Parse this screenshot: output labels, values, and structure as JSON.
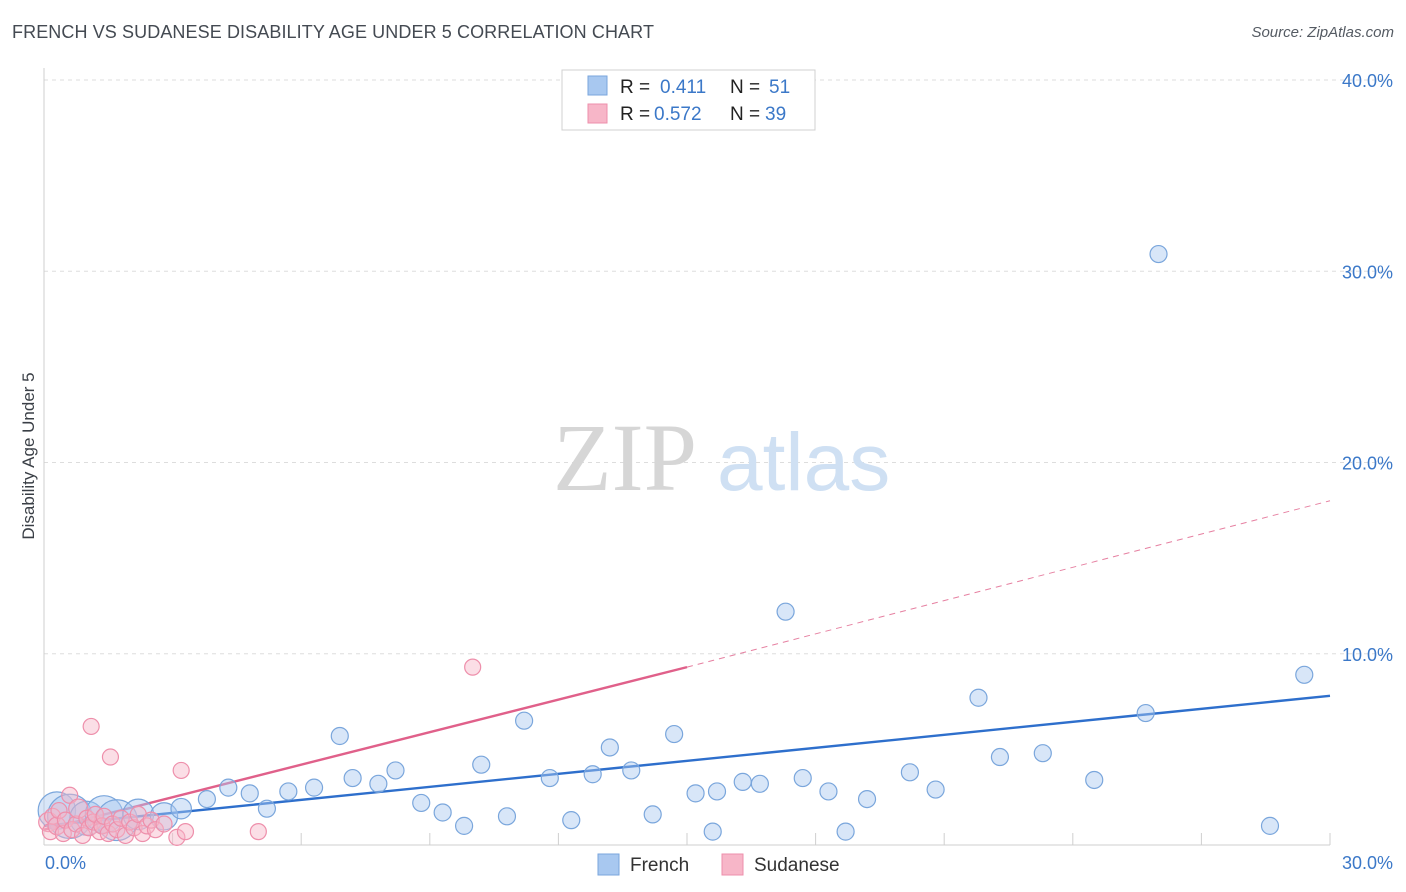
{
  "title": "FRENCH VS SUDANESE DISABILITY AGE UNDER 5 CORRELATION CHART",
  "source": "Source: ZipAtlas.com",
  "watermark": {
    "zip": "ZIP",
    "atlas": "atlas"
  },
  "colors": {
    "french_fill": "#a8c8f0",
    "french_stroke": "#7aa6dc",
    "french_line": "#2e6fcc",
    "sudanese_fill": "#f7b6c8",
    "sudanese_stroke": "#ee8fab",
    "sudanese_line": "#e0608a",
    "value_blue": "#3b78c8",
    "grid": "#dddddd"
  },
  "legend": {
    "rows": [
      {
        "r_label": "R =",
        "r_value": "0.411",
        "n_label": "N =",
        "n_value": "51"
      },
      {
        "r_label": "R =",
        "r_value": "0.572",
        "n_label": "N =",
        "n_value": "39"
      }
    ]
  },
  "chart_data": {
    "type": "scatter",
    "title": "FRENCH VS SUDANESE DISABILITY AGE UNDER 5 CORRELATION CHART",
    "xlabel": "",
    "ylabel": "Disability Age Under 5",
    "xlim": [
      0,
      30
    ],
    "ylim": [
      0,
      40
    ],
    "x_tick_labels": [
      "0.0%",
      "30.0%"
    ],
    "y_tick_labels": [
      "10.0%",
      "20.0%",
      "30.0%",
      "40.0%"
    ],
    "y_ticks": [
      10,
      20,
      30,
      40
    ],
    "grid": true,
    "legend_position": "top-center",
    "series": [
      {
        "name": "French",
        "r": 0.411,
        "n": 51,
        "trend": {
          "x": [
            0,
            30
          ],
          "y": [
            1.0,
            7.8
          ]
        },
        "points": [
          {
            "x": 0.3,
            "y": 1.8,
            "s": 2.2
          },
          {
            "x": 0.6,
            "y": 1.5,
            "s": 2.6
          },
          {
            "x": 1.0,
            "y": 1.4,
            "s": 2.0
          },
          {
            "x": 1.4,
            "y": 1.6,
            "s": 2.2
          },
          {
            "x": 1.7,
            "y": 1.3,
            "s": 2.4
          },
          {
            "x": 2.2,
            "y": 1.6,
            "s": 1.8
          },
          {
            "x": 2.8,
            "y": 1.5,
            "s": 1.6
          },
          {
            "x": 3.2,
            "y": 1.9,
            "s": 1.2
          },
          {
            "x": 3.8,
            "y": 2.4,
            "s": 1.0
          },
          {
            "x": 4.3,
            "y": 3.0,
            "s": 1.0
          },
          {
            "x": 4.8,
            "y": 2.7,
            "s": 1.0
          },
          {
            "x": 5.2,
            "y": 1.9,
            "s": 1.0
          },
          {
            "x": 5.7,
            "y": 2.8,
            "s": 1.0
          },
          {
            "x": 6.3,
            "y": 3.0,
            "s": 1.0
          },
          {
            "x": 6.9,
            "y": 5.7,
            "s": 1.0
          },
          {
            "x": 7.2,
            "y": 3.5,
            "s": 1.0
          },
          {
            "x": 7.8,
            "y": 3.2,
            "s": 1.0
          },
          {
            "x": 8.2,
            "y": 3.9,
            "s": 1.0
          },
          {
            "x": 8.8,
            "y": 2.2,
            "s": 1.0
          },
          {
            "x": 9.3,
            "y": 1.7,
            "s": 1.0
          },
          {
            "x": 9.8,
            "y": 1.0,
            "s": 1.0
          },
          {
            "x": 10.2,
            "y": 4.2,
            "s": 1.0
          },
          {
            "x": 10.8,
            "y": 1.5,
            "s": 1.0
          },
          {
            "x": 11.2,
            "y": 6.5,
            "s": 1.0
          },
          {
            "x": 11.8,
            "y": 3.5,
            "s": 1.0
          },
          {
            "x": 12.3,
            "y": 1.3,
            "s": 1.0
          },
          {
            "x": 12.8,
            "y": 3.7,
            "s": 1.0
          },
          {
            "x": 13.2,
            "y": 5.1,
            "s": 1.0
          },
          {
            "x": 13.7,
            "y": 3.9,
            "s": 1.0
          },
          {
            "x": 14.2,
            "y": 1.6,
            "s": 1.0
          },
          {
            "x": 14.7,
            "y": 5.8,
            "s": 1.0
          },
          {
            "x": 15.2,
            "y": 2.7,
            "s": 1.0
          },
          {
            "x": 15.6,
            "y": 0.7,
            "s": 1.0
          },
          {
            "x": 15.7,
            "y": 2.8,
            "s": 1.0
          },
          {
            "x": 16.3,
            "y": 3.3,
            "s": 1.0
          },
          {
            "x": 16.7,
            "y": 3.2,
            "s": 1.0
          },
          {
            "x": 17.3,
            "y": 12.2,
            "s": 1.0
          },
          {
            "x": 17.7,
            "y": 3.5,
            "s": 1.0
          },
          {
            "x": 18.3,
            "y": 2.8,
            "s": 1.0
          },
          {
            "x": 18.7,
            "y": 0.7,
            "s": 1.0
          },
          {
            "x": 19.2,
            "y": 2.4,
            "s": 1.0
          },
          {
            "x": 20.2,
            "y": 3.8,
            "s": 1.0
          },
          {
            "x": 20.8,
            "y": 2.9,
            "s": 1.0
          },
          {
            "x": 21.8,
            "y": 7.7,
            "s": 1.0
          },
          {
            "x": 22.3,
            "y": 4.6,
            "s": 1.0
          },
          {
            "x": 23.3,
            "y": 4.8,
            "s": 1.0
          },
          {
            "x": 24.5,
            "y": 3.4,
            "s": 1.0
          },
          {
            "x": 25.7,
            "y": 6.9,
            "s": 1.0
          },
          {
            "x": 26.0,
            "y": 30.9,
            "s": 1.0
          },
          {
            "x": 28.6,
            "y": 1.0,
            "s": 1.0
          },
          {
            "x": 29.4,
            "y": 8.9,
            "s": 1.0
          }
        ]
      },
      {
        "name": "Sudanese",
        "r": 0.572,
        "n": 39,
        "trend": {
          "x": [
            0,
            15
          ],
          "y": [
            0.8,
            9.3
          ]
        },
        "trend_extension": {
          "x": [
            15,
            30
          ],
          "y": [
            9.3,
            18.0
          ]
        },
        "points": [
          {
            "x": 0.1,
            "y": 1.2,
            "s": 1.2
          },
          {
            "x": 0.15,
            "y": 0.7,
            "s": 1.0
          },
          {
            "x": 0.2,
            "y": 1.5,
            "s": 1.0
          },
          {
            "x": 0.3,
            "y": 1.0,
            "s": 1.1
          },
          {
            "x": 0.35,
            "y": 1.8,
            "s": 1.0
          },
          {
            "x": 0.45,
            "y": 0.6,
            "s": 1.0
          },
          {
            "x": 0.5,
            "y": 1.3,
            "s": 1.0
          },
          {
            "x": 0.6,
            "y": 2.6,
            "s": 1.0
          },
          {
            "x": 0.65,
            "y": 0.8,
            "s": 1.0
          },
          {
            "x": 0.75,
            "y": 1.1,
            "s": 1.0
          },
          {
            "x": 0.8,
            "y": 1.9,
            "s": 1.2
          },
          {
            "x": 0.9,
            "y": 0.5,
            "s": 1.0
          },
          {
            "x": 1.0,
            "y": 1.4,
            "s": 1.0
          },
          {
            "x": 1.05,
            "y": 0.9,
            "s": 1.0
          },
          {
            "x": 1.1,
            "y": 6.2,
            "s": 1.0
          },
          {
            "x": 1.15,
            "y": 1.2,
            "s": 1.0
          },
          {
            "x": 1.2,
            "y": 1.6,
            "s": 1.0
          },
          {
            "x": 1.3,
            "y": 0.7,
            "s": 1.0
          },
          {
            "x": 1.35,
            "y": 1.0,
            "s": 1.0
          },
          {
            "x": 1.4,
            "y": 1.5,
            "s": 1.0
          },
          {
            "x": 1.5,
            "y": 0.6,
            "s": 1.0
          },
          {
            "x": 1.55,
            "y": 4.6,
            "s": 1.0
          },
          {
            "x": 1.6,
            "y": 1.1,
            "s": 1.0
          },
          {
            "x": 1.7,
            "y": 0.8,
            "s": 1.0
          },
          {
            "x": 1.8,
            "y": 1.4,
            "s": 1.0
          },
          {
            "x": 1.9,
            "y": 0.5,
            "s": 1.0
          },
          {
            "x": 2.0,
            "y": 1.2,
            "s": 1.0
          },
          {
            "x": 2.1,
            "y": 0.9,
            "s": 1.0
          },
          {
            "x": 2.2,
            "y": 1.6,
            "s": 1.0
          },
          {
            "x": 2.3,
            "y": 0.6,
            "s": 1.0
          },
          {
            "x": 2.4,
            "y": 1.0,
            "s": 1.0
          },
          {
            "x": 2.5,
            "y": 1.3,
            "s": 1.0
          },
          {
            "x": 2.6,
            "y": 0.8,
            "s": 1.0
          },
          {
            "x": 2.8,
            "y": 1.1,
            "s": 1.0
          },
          {
            "x": 3.1,
            "y": 0.4,
            "s": 1.0
          },
          {
            "x": 3.2,
            "y": 3.9,
            "s": 1.0
          },
          {
            "x": 3.3,
            "y": 0.7,
            "s": 1.0
          },
          {
            "x": 5.0,
            "y": 0.7,
            "s": 1.0
          },
          {
            "x": 10.0,
            "y": 9.3,
            "s": 1.0
          }
        ]
      }
    ]
  }
}
